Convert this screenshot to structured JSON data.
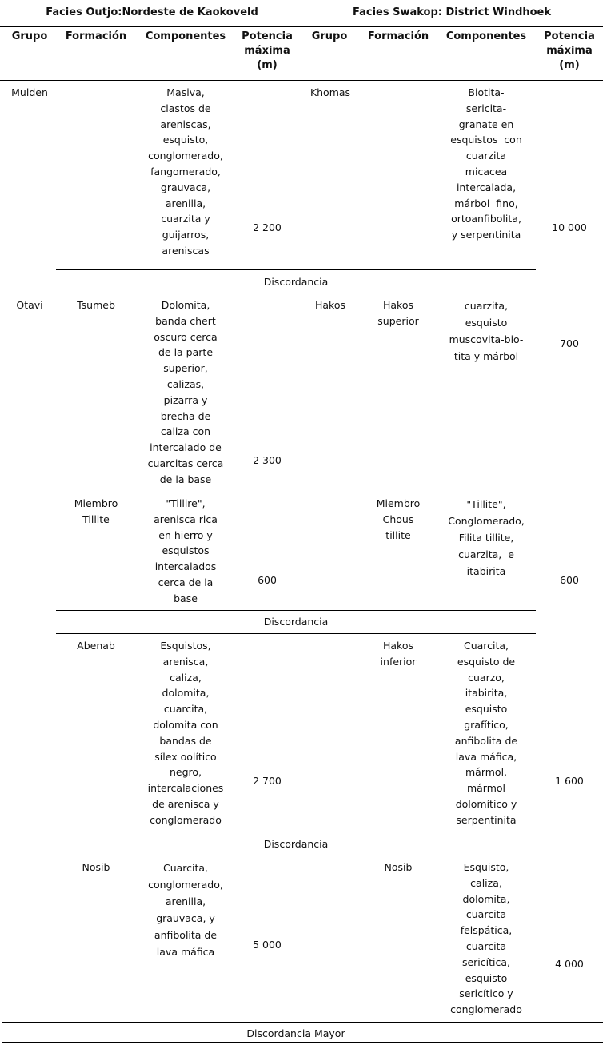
{
  "header": {
    "facies_left": "Facies Outjo:Nordeste de Kaokoveld",
    "facies_right": "Facies Swakop: District Windhoek",
    "columns": [
      "Grupo",
      "Formación",
      "Componentes",
      "Potencia\nmáxima\n(m)",
      "Grupo",
      "Formación",
      "Componentes",
      "Potencia\nmáxima\n(m)"
    ]
  },
  "left": {
    "grupo_mulden": "Mulden",
    "mulden_componentes": "Masiva,\nclastos de\nareniscas,\nesquisto,\nconglomerado,\nfangomerado,\ngrauvaca,\narenilla,\ncuarzita y\nguijarros,\nareniscas",
    "mulden_potencia": "2 200",
    "grupo_otavi": "Otavi",
    "tsumeb": "Tsumeb",
    "tsumeb_componentes": "Dolomita,\nbanda chert\noscuro cerca\nde la parte\nsuperior,\ncalizas,\npizarra y\nbrecha de\ncaliza con\nintercalado de\ncuarcitas cerca\nde la base",
    "tsumeb_potencia": "2 300",
    "tillite": "Miembro\nTillite",
    "tillite_componentes": "\"Tillire\",\narenisca rica\nen hierro y\nesquistos\nintercalados\ncerca de la\nbase",
    "tillite_potencia": "600",
    "abenab": "Abenab",
    "abenab_componentes": "Esquistos,\narenisca,\ncaliza,\ndolomita,\ncuarcita,\ndolomita con\nbandas de\nsílex oolítico\nnegro,\nintercalaciones\nde arenisca y\nconglomerado",
    "abenab_potencia": "2 700",
    "nosib": "Nosib",
    "nosib_componentes": "Cuarcita,\nconglomerado,\narenilla,\ngrauvaca, y\nanfibolita de\nlava máfica",
    "nosib_potencia": "5 000"
  },
  "right": {
    "grupo_khomas": "Khomas",
    "khomas_componentes": "Biotita-\nsericita-\ngranate en\nesquistos  con\ncuarzita\nmicacea\nintercalada,\nmárbol  fino,\nortoanfibolita,\ny serpentinita",
    "khomas_potencia": "10 000",
    "grupo_hakos": "Hakos",
    "hakos_superior": "Hakos\nsuperior",
    "hakos_superior_componentes": "cuarzita,\nesquisto\nmuscovita-bio-\ntita y márbol",
    "hakos_superior_potencia": "700",
    "chous": "Miembro\nChous\ntillite",
    "chous_componentes": "\"Tillite\",\nConglomerado,\nFilita tillite,\ncuarzita,  e\nitabirita",
    "chous_potencia": "600",
    "hakos_inferior": "Hakos\ninferior",
    "hakos_inferior_componentes": "Cuarcita,\nesquisto de\ncuarzo,\nitabirita,\nesquisto\ngrafítico,\nanfibolita de\nlava máfica,\nmármol,\nmármol\ndolomítico y\nserpentinita",
    "hakos_inferior_potencia": "1 600",
    "nosib": "Nosib",
    "nosib_componentes": "Esquisto,\ncaliza,\ndolomita,\ncuarcita\nfelspática,\ncuarcita\nsericítica,\nesquisto\nsericítico y\nconglomerado",
    "nosib_potencia": "4 000"
  },
  "separators": {
    "d1": "Discordancia",
    "d2": "Discordancia",
    "d3": "Discordancia",
    "mayor": "Discordancia Mayor"
  }
}
